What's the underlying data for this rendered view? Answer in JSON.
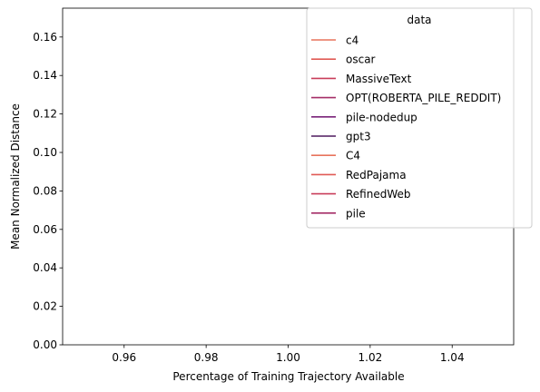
{
  "chart_data": {
    "type": "line",
    "xlabel": "Percentage of Training Trajectory Available",
    "ylabel": "Mean Normalized Distance",
    "xlim": [
      0.945,
      1.055
    ],
    "ylim": [
      0,
      0.175
    ],
    "xticks": [
      0.96,
      0.98,
      1.0,
      1.02,
      1.04
    ],
    "xtick_labels": [
      "0.96",
      "0.98",
      "1.00",
      "1.02",
      "1.04"
    ],
    "yticks": [
      0,
      0.02,
      0.04,
      0.06,
      0.08,
      0.1,
      0.12,
      0.14,
      0.16
    ],
    "ytick_labels": [
      "0.00",
      "0.02",
      "0.04",
      "0.06",
      "0.08",
      "0.10",
      "0.12",
      "0.14",
      "0.16"
    ],
    "grid": false,
    "legend": {
      "title": "data",
      "placement": "top-right",
      "entries": [
        {
          "label": "c4",
          "color": "#e8735c"
        },
        {
          "label": "oscar",
          "color": "#e05a55"
        },
        {
          "label": "MassiveText",
          "color": "#c93e5a"
        },
        {
          "label": "OPT(ROBERTA_PILE_REDDIT)",
          "color": "#a52d67"
        },
        {
          "label": "pile-nodedup",
          "color": "#7a2379"
        },
        {
          "label": "gpt3",
          "color": "#4e1a5e"
        },
        {
          "label": "C4",
          "color": "#e8735c"
        },
        {
          "label": "RedPajama",
          "color": "#e05a55"
        },
        {
          "label": "RefinedWeb",
          "color": "#c93e5a"
        },
        {
          "label": "pile",
          "color": "#a52d67"
        }
      ]
    },
    "series": []
  }
}
